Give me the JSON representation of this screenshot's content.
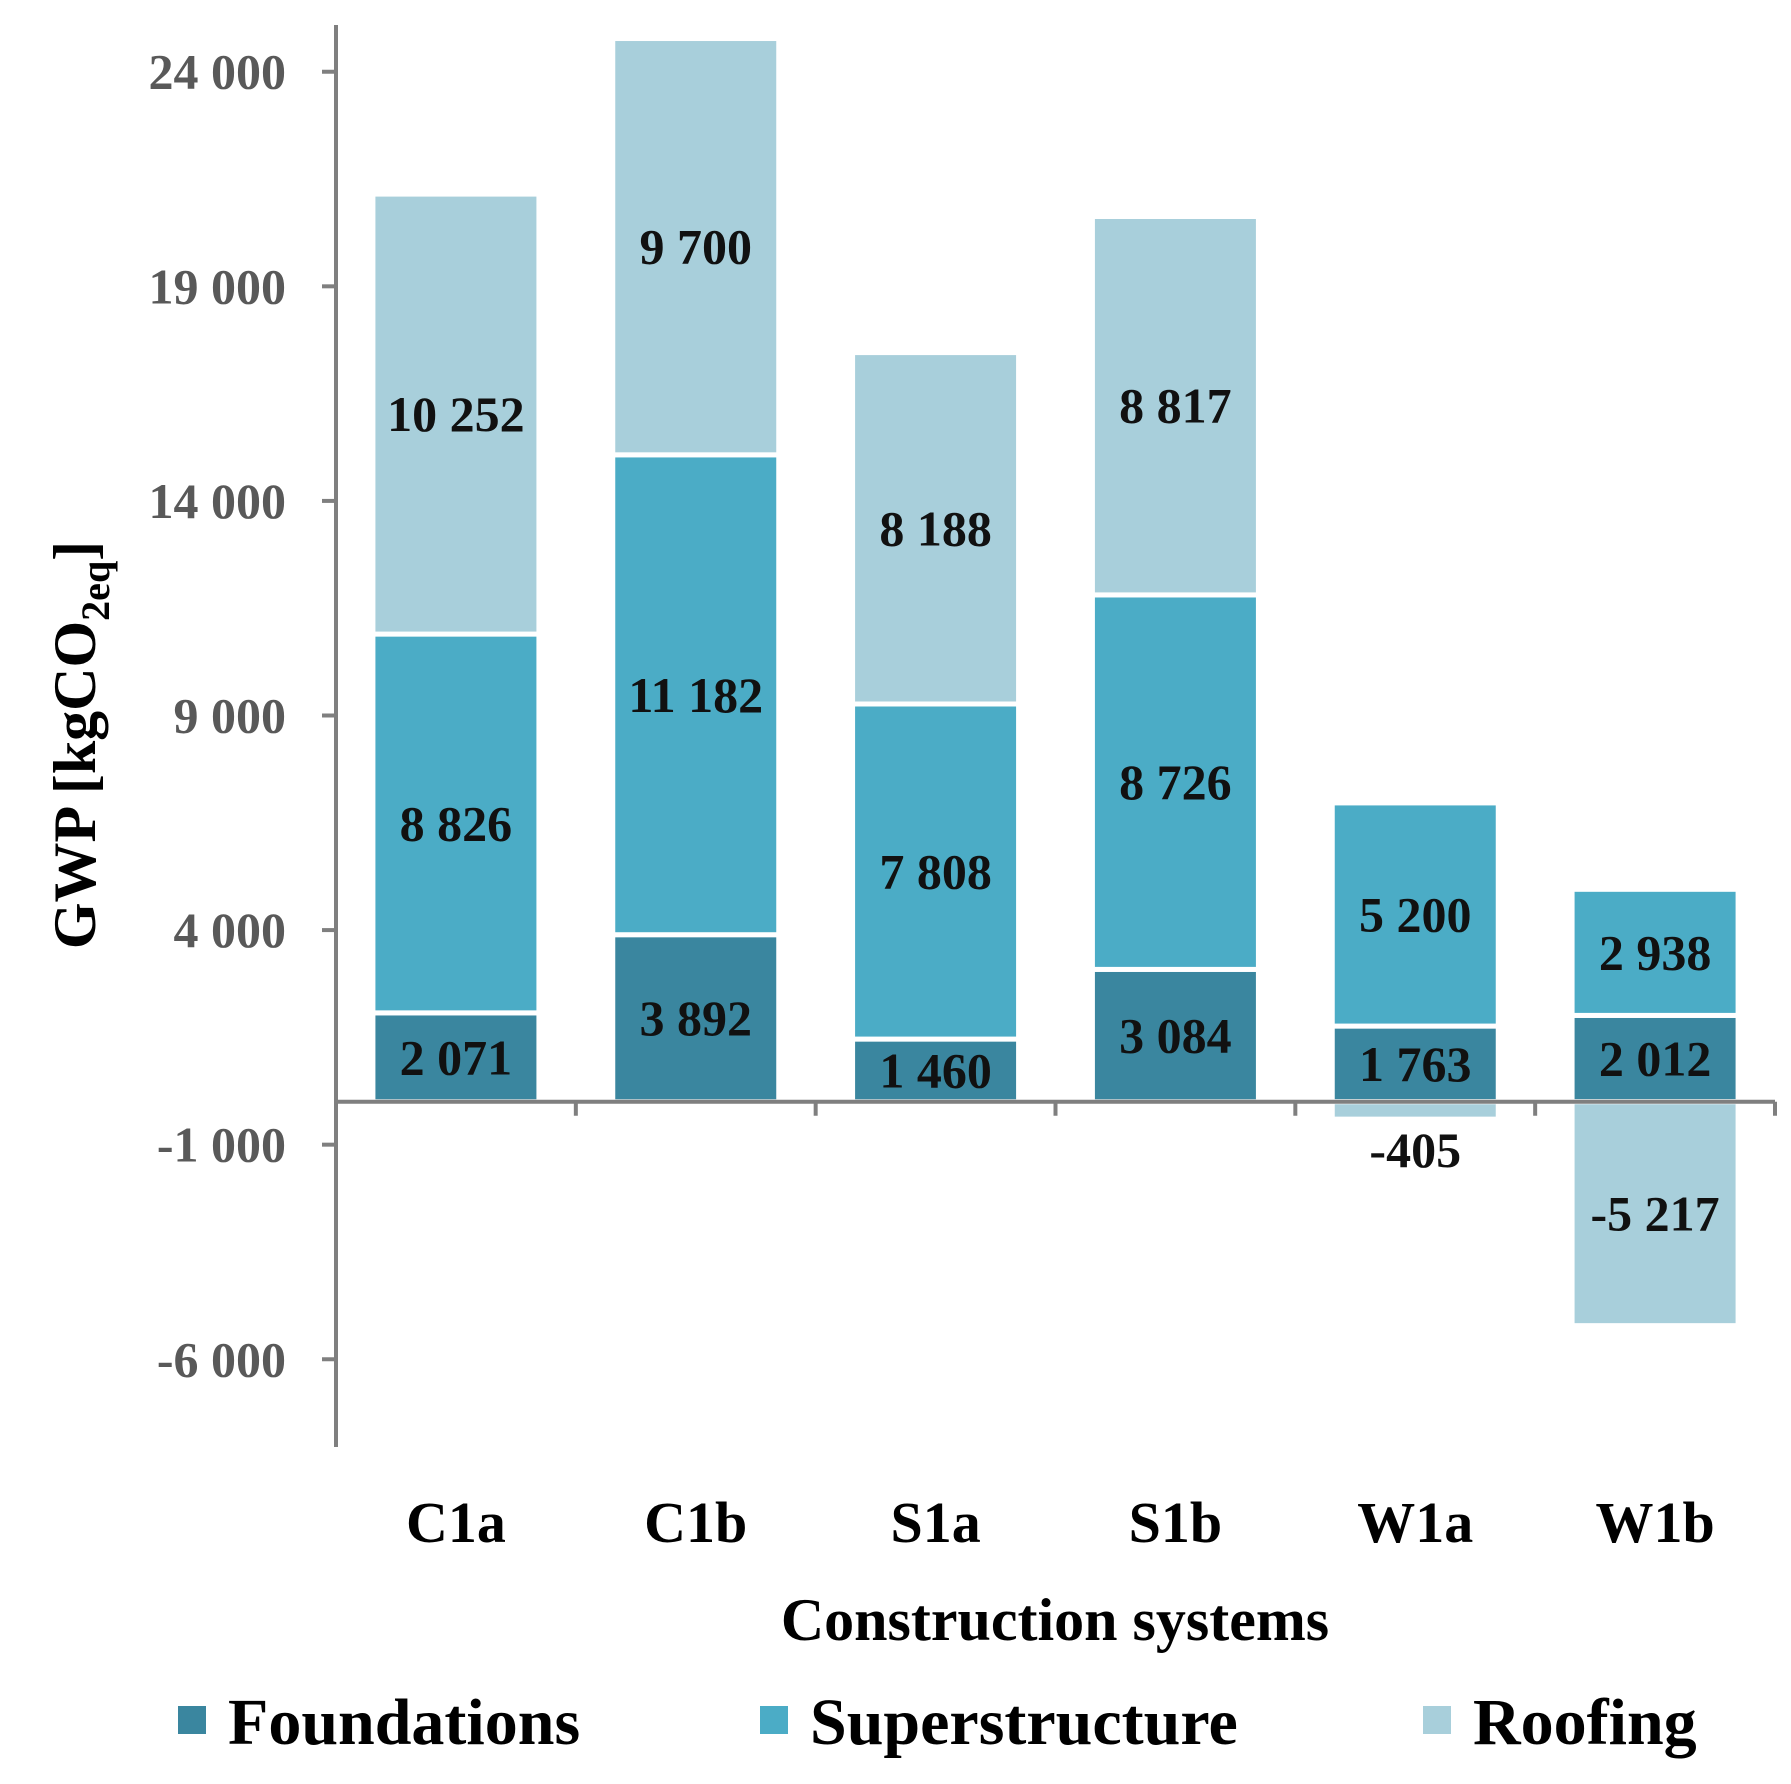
{
  "chart_data": {
    "type": "bar",
    "stacked": true,
    "categories": [
      "C1a",
      "C1b",
      "S1a",
      "S1b",
      "W1a",
      "W1b"
    ],
    "series": [
      {
        "name": "Foundations",
        "color": "#3a869f",
        "values": [
          2071,
          3892,
          1460,
          3084,
          1763,
          2012
        ],
        "labels": [
          "2 071",
          "3 892",
          "1 460",
          "3 084",
          "1 763",
          "2 012"
        ]
      },
      {
        "name": "Superstructure",
        "color": "#4bacc6",
        "values": [
          8826,
          11182,
          7808,
          8726,
          5200,
          2938
        ],
        "labels": [
          "8 826",
          "11 182",
          "7 808",
          "8 726",
          "5 200",
          "2 938"
        ]
      },
      {
        "name": "Roofing",
        "color": "#a8cfdb",
        "values": [
          10252,
          9700,
          8188,
          8817,
          -405,
          -5217
        ],
        "labels": [
          "10 252",
          "9 700",
          "8 188",
          "8 817",
          "-405",
          "-5 217"
        ]
      }
    ],
    "ylim": [
      -6000,
      25000
    ],
    "yticks": [
      24000,
      19000,
      14000,
      9000,
      4000,
      -1000,
      -6000
    ],
    "ytick_labels": [
      "24 000",
      "19 000",
      "14 000",
      "9 000",
      "4 000",
      "-1 000",
      "-6 000"
    ],
    "ylabel": "GWP [kgCO",
    "ylabel_sub": "2eq",
    "ylabel_end": "]",
    "xlabel": "Construction systems",
    "legend_position": "bottom",
    "grid": false
  }
}
